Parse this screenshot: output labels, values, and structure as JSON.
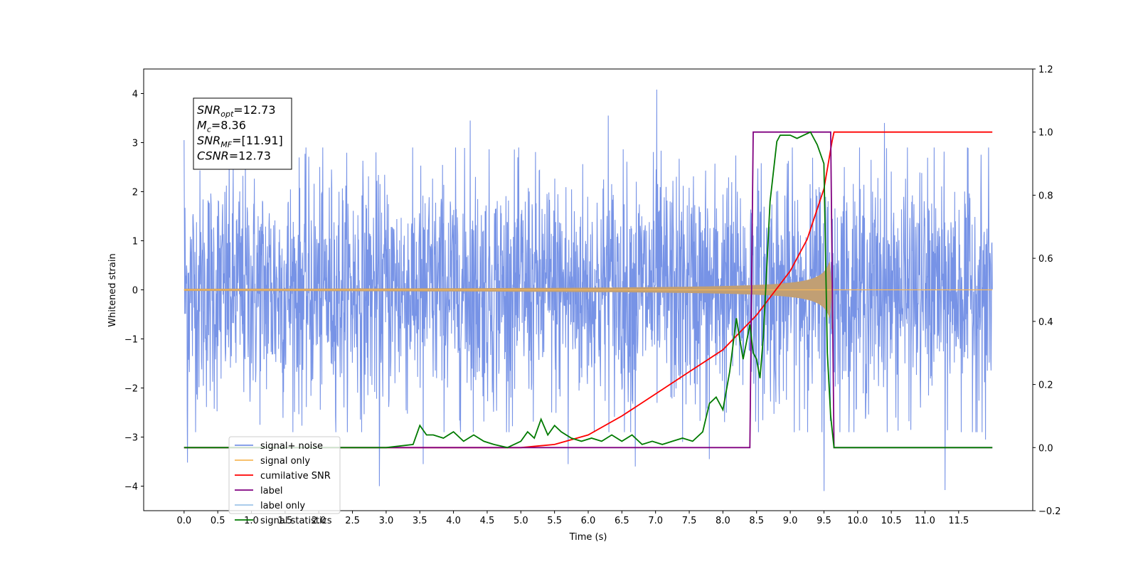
{
  "chart_data": {
    "type": "line",
    "title": "",
    "xlabel": "Time (s)",
    "ylabel": "Whitened strain",
    "ylabel_right": "",
    "xlim": [
      -0.6,
      12.6
    ],
    "ylim": [
      -4.5,
      4.5
    ],
    "ylim_right": [
      -0.2,
      1.2
    ],
    "x_ticks": [
      0.0,
      0.5,
      1.0,
      1.5,
      2.0,
      2.5,
      3.0,
      3.5,
      4.0,
      4.5,
      5.0,
      5.5,
      6.0,
      6.5,
      7.0,
      7.5,
      8.0,
      8.5,
      9.0,
      9.5,
      10.0,
      10.5,
      11.0,
      11.5
    ],
    "x_tick_labels": [
      "0.0",
      "0.5",
      "1.0",
      "1.5",
      "2.0",
      "2.5",
      "3.0",
      "3.5",
      "4.0",
      "4.5",
      "5.0",
      "5.5",
      "6.0",
      "6.5",
      "7.0",
      "7.5",
      "8.0",
      "8.5",
      "9.0",
      "9.5",
      "10.0",
      "10.5",
      "11.0",
      "11.5"
    ],
    "y_ticks": [
      -4,
      -3,
      -2,
      -1,
      0,
      1,
      2,
      3,
      4
    ],
    "y_tick_labels": [
      "−4",
      "−3",
      "−2",
      "−1",
      "0",
      "1",
      "2",
      "3",
      "4"
    ],
    "y_right_ticks": [
      -0.2,
      0.0,
      0.2,
      0.4,
      0.6,
      0.8,
      1.0,
      1.2
    ],
    "y_right_tick_labels": [
      "−0.2",
      "0.0",
      "0.2",
      "0.4",
      "0.6",
      "0.8",
      "1.0",
      "1.2"
    ],
    "grid": false,
    "legend_position": "bottom-left",
    "annotation": {
      "lines": [
        {
          "base": "SNR",
          "sub": "opt",
          "value": "=12.73"
        },
        {
          "base": "M",
          "sub": "c",
          "value": "=8.36"
        },
        {
          "base": "SNR",
          "sub": "MF",
          "value": "=[11.91]"
        },
        {
          "base": "CSNR",
          "sub": "",
          "value": "=12.73"
        }
      ]
    },
    "series": [
      {
        "name": "signal+ noise",
        "axis": "left",
        "color": "#7793e6",
        "description_kind": "noise",
        "x_range": [
          0.0,
          12.0
        ],
        "spread": 1.2,
        "spikes": [
          [
            0.0,
            3.05
          ],
          [
            0.05,
            -3.52
          ],
          [
            2.9,
            -4.0
          ],
          [
            3.55,
            -3.55
          ],
          [
            4.25,
            3.45
          ],
          [
            5.7,
            -3.55
          ],
          [
            6.3,
            3.55
          ],
          [
            6.7,
            -3.6
          ],
          [
            7.02,
            4.08
          ],
          [
            7.4,
            -3.1
          ],
          [
            7.8,
            -3.45
          ],
          [
            9.5,
            -4.1
          ],
          [
            10.4,
            3.4
          ],
          [
            11.3,
            3.42
          ],
          [
            11.3,
            -4.08
          ],
          [
            11.9,
            -3.05
          ]
        ]
      },
      {
        "name": "signal only",
        "axis": "left",
        "color": "#f6b85a",
        "description_kind": "chirp",
        "t_merger": 9.62,
        "peak_amplitude": 0.8
      },
      {
        "name": "cumilative SNR",
        "axis": "right",
        "color": "#ff0000",
        "x": [
          0.0,
          5.0,
          5.5,
          6.0,
          6.5,
          7.0,
          7.5,
          8.0,
          8.5,
          9.0,
          9.25,
          9.5,
          9.62,
          9.65,
          12.0
        ],
        "y": [
          0.0,
          0.0,
          0.01,
          0.04,
          0.1,
          0.17,
          0.24,
          0.31,
          0.42,
          0.56,
          0.66,
          0.82,
          0.97,
          1.0,
          1.0
        ]
      },
      {
        "name": "label",
        "axis": "right",
        "color": "#800080",
        "x": [
          0.0,
          8.4,
          8.45,
          9.6,
          9.65,
          12.0
        ],
        "y": [
          0.0,
          0.0,
          1.0,
          1.0,
          0.0,
          0.0
        ]
      },
      {
        "name": "label only",
        "axis": "right",
        "color": "#9ec4e8",
        "x": [],
        "y": []
      },
      {
        "name": "signal statistics",
        "axis": "right",
        "color": "#007a00",
        "x": [
          0.0,
          0.5,
          1.0,
          1.5,
          2.0,
          2.5,
          3.0,
          3.4,
          3.5,
          3.6,
          3.7,
          3.85,
          4.0,
          4.15,
          4.3,
          4.45,
          4.6,
          4.8,
          5.0,
          5.1,
          5.2,
          5.3,
          5.4,
          5.5,
          5.6,
          5.75,
          5.9,
          6.05,
          6.2,
          6.35,
          6.5,
          6.65,
          6.8,
          6.95,
          7.1,
          7.25,
          7.4,
          7.55,
          7.7,
          7.8,
          7.9,
          8.0,
          8.1,
          8.2,
          8.3,
          8.4,
          8.45,
          8.5,
          8.55,
          8.6,
          8.7,
          8.8,
          8.85,
          8.9,
          9.0,
          9.1,
          9.2,
          9.3,
          9.4,
          9.5,
          9.55,
          9.6,
          9.65,
          9.7,
          12.0
        ],
        "y": [
          0.0,
          0.0,
          0.0,
          0.0,
          0.0,
          0.0,
          0.0,
          0.01,
          0.07,
          0.04,
          0.04,
          0.03,
          0.05,
          0.02,
          0.04,
          0.02,
          0.01,
          0.0,
          0.02,
          0.05,
          0.03,
          0.09,
          0.04,
          0.07,
          0.05,
          0.03,
          0.02,
          0.03,
          0.02,
          0.04,
          0.02,
          0.04,
          0.01,
          0.02,
          0.01,
          0.02,
          0.03,
          0.02,
          0.05,
          0.14,
          0.16,
          0.12,
          0.24,
          0.41,
          0.28,
          0.39,
          0.3,
          0.28,
          0.22,
          0.35,
          0.78,
          0.97,
          0.99,
          0.99,
          0.99,
          0.98,
          0.99,
          1.0,
          0.96,
          0.9,
          0.3,
          0.1,
          0.0,
          0.0,
          0.0
        ]
      }
    ]
  }
}
